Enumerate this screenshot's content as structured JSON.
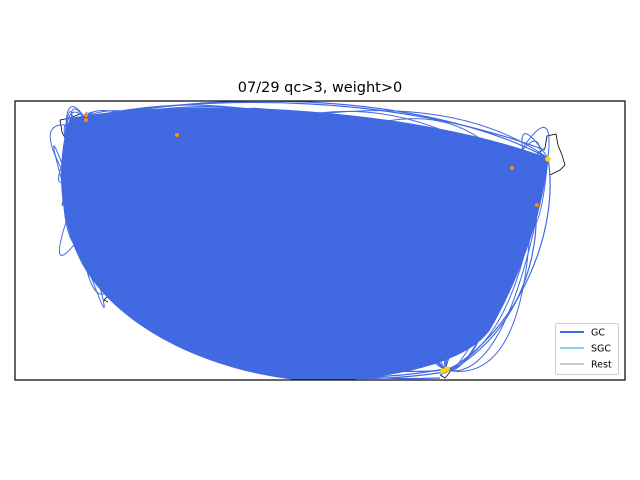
{
  "title": "07/29 qc>3, weight>0",
  "legend": {
    "placement": "bottom-right",
    "entries": [
      {
        "label": "GC",
        "color": "#4169e1"
      },
      {
        "label": "SGC",
        "color": "#87ceeb"
      },
      {
        "label": "Rest",
        "color": "#c8c8c8"
      }
    ]
  },
  "map": {
    "region": "United States (conterminous)",
    "border_color": "#000000",
    "arc_color": "#4169e1",
    "station_colors": [
      "#ff8c00",
      "#ffd700"
    ]
  }
}
